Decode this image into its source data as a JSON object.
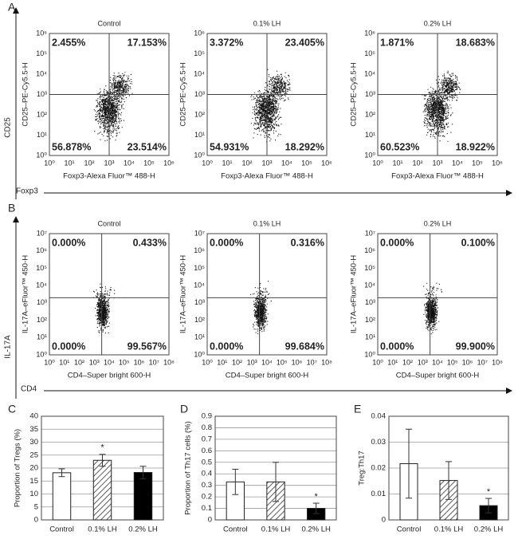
{
  "panel_labels": [
    "A",
    "B",
    "C",
    "D",
    "E"
  ],
  "flow_a": {
    "y_axis_label": "CD25",
    "x_axis_label": "Foxp3",
    "xticks": [
      "10⁰",
      "10¹",
      "10²",
      "10³",
      "10⁴",
      "10⁵",
      "10⁶"
    ],
    "yticks": [
      "10⁰",
      "10¹",
      "10²",
      "10³",
      "10⁴",
      "10⁵",
      "10⁶"
    ],
    "plots": [
      {
        "title": "Control",
        "y_label": "CD25–PE-Cy5.5-H",
        "x_label": "Foxp3-Alexa Fluor™ 488-H",
        "quadrants": [
          "2.455%",
          "17.153%",
          "56.878%",
          "23.514%"
        ]
      },
      {
        "title": "0.1% LH",
        "y_label": "CD25–PE-Cy5.5-H",
        "x_label": "Foxp3-Alexa Fluor™ 488-H",
        "quadrants": [
          "3.372%",
          "23.405%",
          "54.931%",
          "18.292%"
        ]
      },
      {
        "title": "0.2% LH",
        "y_label": "CD25–PE-Cy5.5-H",
        "x_label": "Foxp3-Alexa Fluor™ 488-H",
        "quadrants": [
          "1.871%",
          "18.683%",
          "60.523%",
          "18.922%"
        ]
      }
    ]
  },
  "flow_b": {
    "y_axis_label": "IL-17A",
    "x_axis_label": "CD4",
    "xticks": [
      "10⁰",
      "10¹",
      "10²",
      "10³",
      "10⁴",
      "10⁵",
      "10⁶",
      "10⁷",
      "10⁸"
    ],
    "yticks": [
      "10⁰",
      "10¹",
      "10²",
      "10³",
      "10⁴",
      "10⁵",
      "10⁶",
      "10⁷"
    ],
    "plots": [
      {
        "title": "Control",
        "y_label": "IL-17A–eFluor™ 450-H",
        "x_label": "CD4–Super bright 600-H",
        "quadrants": [
          "0.000%",
          "0.433%",
          "0.000%",
          "99.567%"
        ]
      },
      {
        "title": "0.1% LH",
        "y_label": "IL-17A–eFluor™ 450-H",
        "x_label": "CD4–Super bright 600-H",
        "quadrants": [
          "0.000%",
          "0.316%",
          "0.000%",
          "99.684%"
        ]
      },
      {
        "title": "0.2% LH",
        "y_label": "IL-17A–eFluor™ 450-H",
        "x_label": "CD4–Super bright 600-H",
        "quadrants": [
          "0.000%",
          "0.100%",
          "0.000%",
          "99.900%"
        ]
      }
    ]
  },
  "chart_data": [
    {
      "type": "bar",
      "y_label": "Proportion of Tregs (%)",
      "categories": [
        "Control",
        "0.1% LH",
        "0.2% LH"
      ],
      "values": [
        18.2,
        23,
        18.3
      ],
      "errors": [
        1.5,
        2.3,
        2.4
      ],
      "significance": [
        null,
        "*",
        null
      ],
      "fills": [
        "white",
        "hatch",
        "black"
      ],
      "ylim": [
        0,
        40
      ],
      "yticks": [
        0,
        5,
        10,
        15,
        20,
        25,
        30,
        35,
        40
      ],
      "grid": true
    },
    {
      "type": "bar",
      "y_label": "Proportion of Th17 cells (%)",
      "categories": [
        "Control",
        "0.1% LH",
        "0.2% LH"
      ],
      "values": [
        0.33,
        0.33,
        0.1
      ],
      "errors": [
        0.11,
        0.17,
        0.045
      ],
      "significance": [
        null,
        null,
        "*"
      ],
      "fills": [
        "white",
        "hatch",
        "black"
      ],
      "ylim": [
        0,
        0.9
      ],
      "yticks": [
        0,
        0.1,
        0.2,
        0.3,
        0.4,
        0.5,
        0.6,
        0.7,
        0.8,
        0.9
      ],
      "grid": true
    },
    {
      "type": "bar",
      "y_label": "Treg:Th17",
      "categories": [
        "Control",
        "0.1% LH",
        "0.2% LH"
      ],
      "values": [
        0.0217,
        0.0152,
        0.0055
      ],
      "errors": [
        0.0133,
        0.0073,
        0.0028
      ],
      "significance": [
        null,
        null,
        "*"
      ],
      "fills": [
        "white",
        "hatch",
        "black"
      ],
      "ylim": [
        0,
        0.04
      ],
      "yticks": [
        0,
        0.01,
        0.02,
        0.03,
        0.04
      ],
      "grid": true
    }
  ]
}
